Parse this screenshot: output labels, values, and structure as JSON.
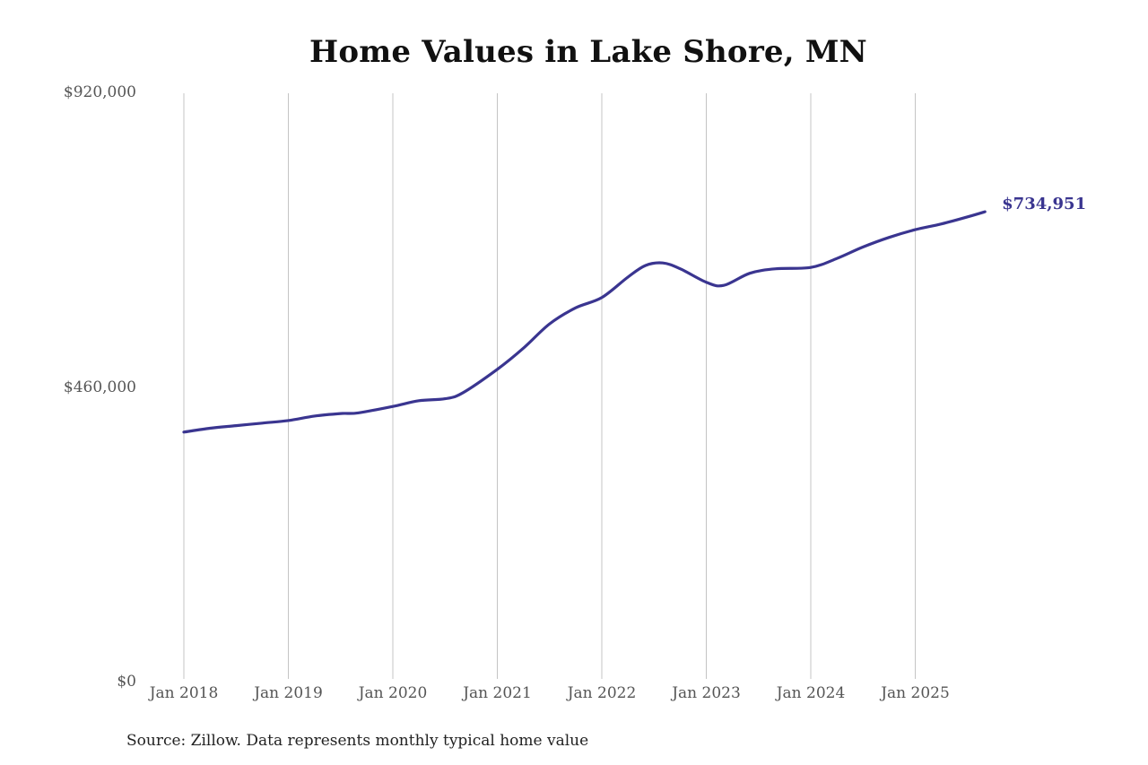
{
  "chart_data": {
    "type": "line",
    "title": "Home Values in Lake Shore, MN",
    "xlabel": "",
    "ylabel": "",
    "ylim": [
      0,
      920000
    ],
    "yticks": [
      0,
      460000,
      920000
    ],
    "ytick_labels": [
      "$0",
      "$460,000",
      "$920,000"
    ],
    "xtick_labels": [
      "Jan 2018",
      "Jan 2019",
      "Jan 2020",
      "Jan 2021",
      "Jan 2022",
      "Jan 2023",
      "Jan 2024",
      "Jan 2025"
    ],
    "grid": {
      "vertical": true,
      "horizontal": false
    },
    "legend": "none",
    "line_color": "#3a3590",
    "series": [
      {
        "name": "Typical home value",
        "x": [
          "2018-01",
          "2018-04",
          "2018-07",
          "2018-10",
          "2019-01",
          "2019-04",
          "2019-07",
          "2019-09",
          "2020-01",
          "2020-04",
          "2020-07",
          "2020-09",
          "2021-01",
          "2021-04",
          "2021-07",
          "2021-10",
          "2022-01",
          "2022-04",
          "2022-06",
          "2022-08",
          "2022-10",
          "2023-01",
          "2023-03",
          "2023-06",
          "2023-09",
          "2024-01",
          "2024-04",
          "2024-07",
          "2024-10",
          "2025-01",
          "2025-04",
          "2025-07",
          "2025-09"
        ],
        "values": [
          391000,
          397000,
          401000,
          405000,
          409000,
          416000,
          420000,
          421000,
          431000,
          440000,
          443000,
          452000,
          489000,
          522000,
          560000,
          585000,
          601000,
          633000,
          651000,
          655000,
          646000,
          625000,
          620000,
          639000,
          646000,
          648000,
          662000,
          680000,
          695000,
          707000,
          716000,
          727000,
          734951
        ]
      }
    ],
    "annotations": [
      {
        "text": "$734,951",
        "x": "2025-09",
        "y": 734951
      }
    ],
    "source": "Source: Zillow. Data represents monthly typical home value"
  }
}
